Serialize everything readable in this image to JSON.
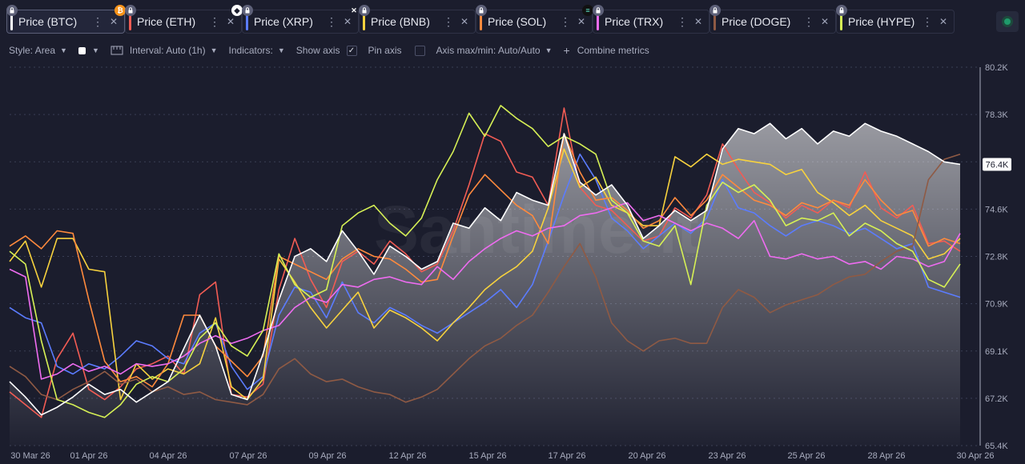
{
  "tabs": [
    {
      "label": "Price (BTC)",
      "color": "#ffffff",
      "active": true,
      "coin": "bitcoin-icon"
    },
    {
      "label": "Price (ETH)",
      "color": "#f25c54",
      "coin": "ethereum-icon"
    },
    {
      "label": "Price (XRP)",
      "color": "#5b7cff",
      "coin": "xrp-icon"
    },
    {
      "label": "Price (BNB)",
      "color": "#f7d23e"
    },
    {
      "label": "Price (SOL)",
      "color": "#ff8a3d",
      "coin": "solana-icon"
    },
    {
      "label": "Price (TRX)",
      "color": "#ee6cf0"
    },
    {
      "label": "Price (DOGE)",
      "color": "#8f5a44"
    },
    {
      "label": "Price (HYPE)",
      "color": "#d6f055"
    }
  ],
  "toolbar": {
    "style_label": "Style: Area",
    "interval_label": "Interval: Auto (1h)",
    "indicators_label": "Indicators:",
    "show_axis_label": "Show axis",
    "pin_axis_label": "Pin axis",
    "axis_max_min_label": "Axis max/min: Auto/Auto",
    "combine_label": "Combine metrics"
  },
  "watermark": "Santiment",
  "chart_data": {
    "type": "line",
    "x_range": [
      "2026-03-30",
      "2026-04-30"
    ],
    "x_ticks": [
      "30 Mar 26",
      "01 Apr 26",
      "04 Apr 26",
      "07 Apr 26",
      "09 Apr 26",
      "12 Apr 26",
      "15 Apr 26",
      "17 Apr 26",
      "20 Apr 26",
      "23 Apr 26",
      "25 Apr 26",
      "28 Apr 26",
      "30 Apr 26"
    ],
    "y_ticks": [
      "80.2K",
      "78.3K",
      "76.4K",
      "74.6K",
      "72.8K",
      "70.9K",
      "69.1K",
      "67.2K",
      "65.4K"
    ],
    "ylim": [
      65.4,
      80.2
    ],
    "current_value_label": "76.4K",
    "area_series": "Price (BTC)",
    "series": [
      {
        "name": "Price (BTC)",
        "color": "#ffffff",
        "values": [
          67.9,
          67.3,
          66.6,
          66.9,
          67.3,
          67.8,
          67.4,
          67.6,
          67.1,
          67.5,
          67.9,
          69.2,
          70.5,
          69.3,
          67.4,
          67.2,
          69.0,
          71.1,
          72.8,
          73.1,
          72.6,
          73.8,
          73.0,
          72.1,
          73.2,
          72.8,
          72.3,
          72.6,
          74.1,
          73.9,
          74.7,
          74.2,
          75.3,
          75.0,
          74.8,
          77.6,
          75.7,
          75.2,
          75.6,
          74.8,
          73.5,
          74.0,
          74.6,
          74.2,
          74.6,
          77.0,
          77.8,
          77.6,
          78.0,
          77.4,
          77.8,
          77.2,
          77.7,
          77.5,
          78.0,
          77.7,
          77.5,
          77.2,
          76.9,
          76.5,
          76.4
        ]
      },
      {
        "name": "Price (ETH)",
        "color": "#f25c54",
        "values": [
          67.5,
          67.0,
          66.5,
          68.8,
          69.8,
          67.6,
          67.2,
          67.7,
          68.4,
          68.6,
          68.9,
          68.2,
          71.3,
          71.8,
          67.4,
          67.3,
          67.8,
          71.5,
          73.5,
          71.9,
          70.8,
          72.6,
          73.0,
          72.5,
          73.4,
          72.9,
          72.2,
          72.5,
          73.8,
          75.6,
          77.6,
          77.3,
          76.1,
          75.9,
          74.8,
          78.6,
          75.5,
          74.8,
          74.6,
          74.0,
          73.4,
          73.6,
          74.7,
          74.3,
          75.2,
          77.2,
          76.2,
          75.3,
          74.9,
          74.3,
          74.8,
          74.5,
          75.0,
          74.7,
          76.1,
          74.7,
          74.3,
          74.8,
          73.3,
          73.4,
          73.0
        ]
      },
      {
        "name": "Price (XRP)",
        "color": "#5b7cff",
        "values": [
          70.8,
          70.4,
          70.2,
          68.5,
          68.2,
          68.6,
          68.4,
          68.9,
          69.5,
          69.3,
          68.8,
          68.6,
          69.8,
          70.2,
          68.5,
          67.6,
          68.1,
          70.5,
          71.6,
          71.4,
          70.4,
          71.8,
          70.6,
          70.2,
          70.8,
          70.5,
          70.1,
          69.8,
          70.2,
          70.6,
          71.0,
          71.5,
          70.8,
          71.7,
          73.4,
          75.2,
          76.8,
          75.8,
          74.3,
          73.8,
          73.1,
          73.6,
          74.1,
          73.7,
          74.3,
          75.8,
          74.7,
          74.5,
          74.0,
          73.6,
          74.0,
          74.2,
          74.0,
          73.7,
          73.9,
          73.5,
          73.1,
          73.3,
          71.6,
          71.4,
          71.2
        ]
      },
      {
        "name": "Price (BNB)",
        "color": "#f7d23e",
        "values": [
          72.6,
          73.4,
          71.6,
          73.5,
          73.5,
          72.3,
          72.2,
          67.2,
          68.6,
          68.0,
          68.4,
          68.2,
          68.6,
          70.4,
          67.7,
          67.2,
          68.0,
          72.7,
          71.8,
          70.8,
          70.0,
          70.7,
          71.4,
          70.0,
          70.7,
          70.4,
          70.0,
          69.5,
          70.2,
          70.8,
          71.5,
          72.0,
          72.4,
          73.0,
          74.7,
          77.0,
          75.5,
          75.9,
          74.8,
          74.5,
          74.0,
          74.0,
          76.7,
          76.3,
          76.8,
          76.4,
          76.6,
          76.5,
          76.4,
          76.0,
          76.2,
          75.3,
          74.9,
          74.4,
          74.8,
          74.2,
          73.9,
          73.6,
          72.7,
          72.9,
          73.5
        ]
      },
      {
        "name": "Price (SOL)",
        "color": "#ff8a3d",
        "values": [
          73.2,
          73.6,
          73.1,
          73.8,
          73.7,
          71.1,
          68.7,
          67.9,
          68.1,
          67.7,
          68.6,
          70.5,
          70.5,
          69.3,
          68.7,
          68.1,
          68.9,
          72.8,
          72.5,
          72.2,
          71.9,
          72.7,
          73.1,
          72.8,
          72.7,
          72.3,
          71.8,
          71.9,
          73.6,
          75.2,
          76.0,
          75.4,
          74.8,
          74.4,
          73.3,
          77.6,
          76.1,
          75.0,
          75.1,
          74.6,
          73.9,
          74.2,
          75.1,
          74.4,
          75.0,
          76.0,
          75.5,
          75.0,
          74.8,
          74.4,
          74.9,
          74.7,
          75.0,
          74.8,
          75.8,
          75.0,
          74.4,
          74.6,
          73.2,
          73.5,
          73.3
        ]
      },
      {
        "name": "Price (TRX)",
        "color": "#ee6cf0",
        "values": [
          72.3,
          72.0,
          68.0,
          68.2,
          68.6,
          68.3,
          68.5,
          68.2,
          68.6,
          68.5,
          68.6,
          68.9,
          69.4,
          69.7,
          69.4,
          69.6,
          69.9,
          70.1,
          70.8,
          71.2,
          71.0,
          71.7,
          71.6,
          71.9,
          72.0,
          71.8,
          71.7,
          72.4,
          71.9,
          72.6,
          73.1,
          73.5,
          73.8,
          73.6,
          73.9,
          74.0,
          74.4,
          74.5,
          74.7,
          74.9,
          74.2,
          74.4,
          74.1,
          73.8,
          74.1,
          73.9,
          73.5,
          74.2,
          72.8,
          72.7,
          72.9,
          72.7,
          72.8,
          72.5,
          72.6,
          72.3,
          72.8,
          72.7,
          72.4,
          72.6,
          73.7
        ]
      },
      {
        "name": "Price (DOGE)",
        "color": "#8f5a44",
        "values": [
          68.5,
          68.1,
          67.4,
          67.2,
          67.6,
          67.9,
          68.3,
          67.8,
          68.0,
          67.5,
          67.7,
          67.4,
          67.5,
          67.2,
          67.1,
          67.0,
          67.4,
          68.4,
          68.8,
          68.2,
          67.9,
          68.0,
          67.7,
          67.5,
          67.4,
          67.1,
          67.3,
          67.6,
          68.2,
          68.8,
          69.3,
          69.6,
          70.1,
          70.5,
          71.4,
          72.4,
          73.3,
          72.0,
          70.2,
          69.5,
          69.1,
          69.5,
          69.6,
          69.4,
          69.4,
          70.8,
          71.5,
          71.2,
          70.6,
          70.9,
          71.1,
          71.3,
          71.7,
          72.0,
          72.1,
          72.6,
          73.0,
          73.2,
          75.8,
          76.6,
          76.8
        ]
      },
      {
        "name": "Price (HYPE)",
        "color": "#d6f055",
        "values": [
          73.0,
          72.5,
          69.5,
          67.2,
          67.0,
          66.7,
          66.5,
          67.0,
          67.8,
          68.1,
          67.9,
          68.4,
          69.6,
          70.2,
          69.3,
          68.9,
          69.9,
          72.9,
          71.7,
          71.2,
          71.5,
          74.0,
          74.5,
          74.8,
          74.1,
          73.6,
          74.3,
          75.8,
          76.9,
          78.4,
          77.5,
          78.7,
          78.2,
          77.8,
          77.1,
          77.5,
          77.2,
          76.8,
          75.0,
          74.5,
          73.4,
          73.2,
          74.0,
          71.7,
          74.8,
          75.7,
          75.3,
          75.6,
          75.0,
          74.0,
          74.3,
          74.2,
          74.5,
          73.6,
          74.1,
          73.8,
          73.3,
          73.0,
          71.9,
          71.6,
          72.5
        ]
      }
    ]
  }
}
